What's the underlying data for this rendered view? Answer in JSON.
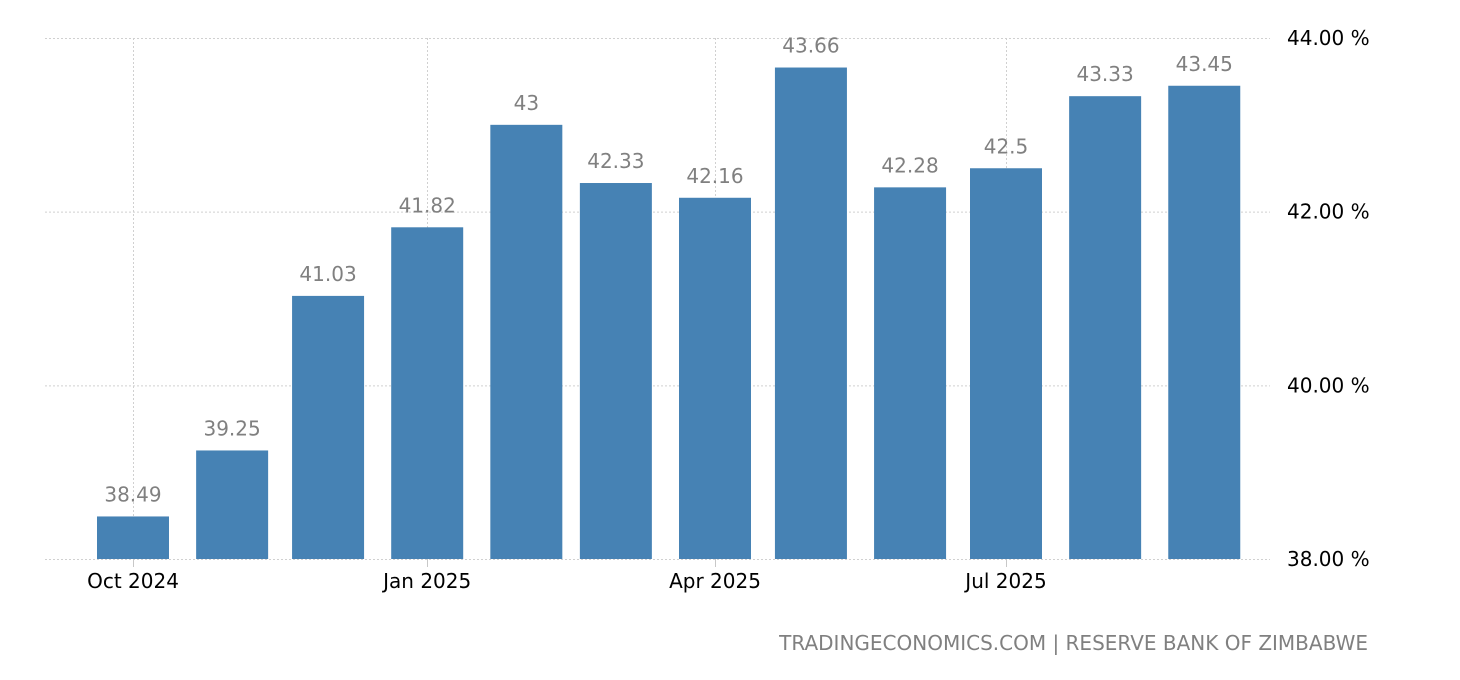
{
  "chart_data": {
    "type": "bar",
    "title": "",
    "xlabel": "",
    "ylabel": "",
    "categories": [
      "Oct 2024",
      "Nov 2024",
      "Dec 2024",
      "Jan 2025",
      "Feb 2025",
      "Mar 2025",
      "Apr 2025",
      "May 2025",
      "Jun 2025",
      "Jul 2025",
      "Aug 2025",
      "Sep 2025"
    ],
    "values": [
      38.49,
      39.25,
      41.03,
      41.82,
      43,
      42.33,
      42.16,
      43.66,
      42.28,
      42.5,
      43.33,
      43.45
    ],
    "value_labels": [
      "38.49",
      "39.25",
      "41.03",
      "41.82",
      "43",
      "42.33",
      "42.16",
      "43.66",
      "42.28",
      "42.5",
      "43.33",
      "43.45"
    ],
    "ylim": [
      38,
      44
    ],
    "y_ticks": [
      {
        "value": 38,
        "label": "38.00 %"
      },
      {
        "value": 40,
        "label": "40.00 %"
      },
      {
        "value": 42,
        "label": "42.00 %"
      },
      {
        "value": 44,
        "label": "44.00 %"
      }
    ],
    "x_ticks": [
      {
        "index": 0,
        "label": "Oct 2024"
      },
      {
        "index": 3,
        "label": "Jan 2025"
      },
      {
        "index": 6,
        "label": "Apr 2025"
      },
      {
        "index": 9,
        "label": "Jul 2025"
      }
    ],
    "grid": true,
    "y_axis_position": "right",
    "bar_color": "#4682b4",
    "source": "TRADINGECONOMICS.COM | RESERVE BANK OF ZIMBABWE"
  }
}
